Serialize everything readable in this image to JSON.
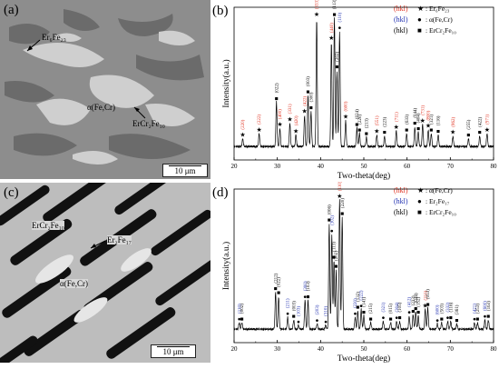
{
  "figure": {
    "panels": [
      {
        "id": "a",
        "label": "(a)",
        "type": "micrograph",
        "annotations": [
          "Er₆Fe₂₃",
          "α(Fe,Cr)",
          "ErCr₂Fe₁₀"
        ],
        "scale_bar": "10 μm"
      },
      {
        "id": "b",
        "label": "(b)",
        "type": "xrd-chart",
        "legend": [
          {
            "hkl": "(hkl)",
            "color": "#e0301e",
            "symbol": "★",
            "phase": "Er₆Fe₂₃"
          },
          {
            "hkl": "(hkl)",
            "color": "#2030b0",
            "symbol": "●",
            "phase": "α(Fe,Cr)"
          },
          {
            "hkl": "(hkl)",
            "color": "#000000",
            "symbol": "■",
            "phase": "ErCr₂Fe₁₀"
          }
        ]
      },
      {
        "id": "c",
        "label": "(c)",
        "type": "micrograph",
        "annotations": [
          "ErCr₂Fe₁₀",
          "Er₂Fe₁₇",
          "α(Fe,Cr)"
        ],
        "scale_bar": "10 μm"
      },
      {
        "id": "d",
        "label": "(d)",
        "type": "xrd-chart",
        "legend": [
          {
            "hkl": "(hkl)",
            "color": "#e0301e",
            "symbol": "★",
            "phase": "α(Fe,Cr)"
          },
          {
            "hkl": "(hkl)",
            "color": "#2030b0",
            "symbol": "●",
            "phase": "Er₂Fe₁₇"
          },
          {
            "hkl": "(hkl)",
            "color": "#000000",
            "symbol": "■",
            "phase": "ErCr₂Fe₁₀"
          }
        ]
      }
    ]
  },
  "chart_data": [
    {
      "type": "line",
      "panel": "b",
      "xlabel": "Two-theta(deg)",
      "ylabel": "Intensity(a.u.)",
      "xlim": [
        20,
        80
      ],
      "xticks": [
        20,
        30,
        40,
        50,
        60,
        70,
        80
      ],
      "peaks": [
        {
          "x": 22.0,
          "h": 0.06,
          "label": "(220)",
          "color": "#e0301e",
          "marker": "★"
        },
        {
          "x": 25.8,
          "h": 0.1,
          "label": "(222)",
          "color": "#e0301e",
          "marker": "★"
        },
        {
          "x": 29.8,
          "h": 0.34,
          "label": "(022)",
          "color": "#000000",
          "marker": "■"
        },
        {
          "x": 30.6,
          "h": 0.14,
          "label": "(400)",
          "color": "#e0301e",
          "marker": "★"
        },
        {
          "x": 32.9,
          "h": 0.18,
          "label": "(331)",
          "color": "#e0301e",
          "marker": "★"
        },
        {
          "x": 34.3,
          "h": 0.09,
          "label": "(420)",
          "color": "#e0301e",
          "marker": "★"
        },
        {
          "x": 36.3,
          "h": 0.24,
          "label": "(422)",
          "color": "#e0301e",
          "marker": "★"
        },
        {
          "x": 37.1,
          "h": 0.39,
          "label": "(003)",
          "color": "#000000",
          "marker": "■"
        },
        {
          "x": 37.8,
          "h": 0.27,
          "label": "(300)",
          "color": "#000000",
          "marker": "■"
        },
        {
          "x": 39.1,
          "h": 0.98,
          "label": "(333)",
          "color": "#e0301e",
          "marker": "★"
        },
        {
          "x": 42.5,
          "h": 0.8,
          "label": "(440)",
          "color": "#e0301e",
          "marker": "★"
        },
        {
          "x": 43.2,
          "h": 1.0,
          "label": "(113)",
          "color": "#000000",
          "marker": "■"
        },
        {
          "x": 43.8,
          "h": 0.58,
          "label": "(202)",
          "color": "#000000",
          "marker": "■"
        },
        {
          "x": 44.4,
          "h": 0.88,
          "label": "(110)",
          "color": "#2030b0",
          "marker": "●"
        },
        {
          "x": 45.8,
          "h": 0.2,
          "label": "(600)",
          "color": "#e0301e",
          "marker": "★"
        },
        {
          "x": 48.4,
          "h": 0.14,
          "label": "(024)",
          "color": "#000000",
          "marker": "■"
        },
        {
          "x": 49.0,
          "h": 0.1,
          "label": "(220)",
          "color": "#000000",
          "marker": "■"
        },
        {
          "x": 50.6,
          "h": 0.07,
          "label": "(213)",
          "color": "#000000",
          "marker": "■"
        },
        {
          "x": 53.0,
          "h": 0.09,
          "label": "(551)",
          "color": "#e0301e",
          "marker": "★"
        },
        {
          "x": 54.8,
          "h": 0.08,
          "label": "(223)",
          "color": "#000000",
          "marker": "■"
        },
        {
          "x": 57.5,
          "h": 0.12,
          "label": "(711)",
          "color": "#e0301e",
          "marker": "★"
        },
        {
          "x": 59.9,
          "h": 0.1,
          "label": "(633)",
          "color": "#000000",
          "marker": "■"
        },
        {
          "x": 61.8,
          "h": 0.15,
          "label": "(044)",
          "color": "#000000",
          "marker": "■"
        },
        {
          "x": 62.6,
          "h": 0.11,
          "label": "(404)",
          "color": "#000000",
          "marker": "■"
        },
        {
          "x": 63.6,
          "h": 0.17,
          "label": "(731)",
          "color": "#e0301e",
          "marker": "★"
        },
        {
          "x": 64.9,
          "h": 0.13,
          "label": "(800)",
          "color": "#e0301e",
          "marker": "★"
        },
        {
          "x": 65.6,
          "h": 0.1,
          "label": "(321)",
          "color": "#000000",
          "marker": "■"
        },
        {
          "x": 67.2,
          "h": 0.09,
          "label": "(116)",
          "color": "#000000",
          "marker": "■"
        },
        {
          "x": 70.6,
          "h": 0.08,
          "label": "(862)",
          "color": "#e0301e",
          "marker": "★"
        },
        {
          "x": 74.2,
          "h": 0.06,
          "label": "(255)",
          "color": "#000000",
          "marker": "■"
        },
        {
          "x": 76.8,
          "h": 0.08,
          "label": "(422)",
          "color": "#000000",
          "marker": "■"
        },
        {
          "x": 78.5,
          "h": 0.1,
          "label": "(971)",
          "color": "#e0301e",
          "marker": "★"
        }
      ]
    },
    {
      "type": "line",
      "panel": "d",
      "xlabel": "Two-theta(deg)",
      "ylabel": "Intensity(a.u.)",
      "xlim": [
        20,
        80
      ],
      "xticks": [
        20,
        30,
        40,
        50,
        60,
        70,
        80
      ],
      "peaks": [
        {
          "x": 21.2,
          "h": 0.05,
          "label": "(110)",
          "color": "#2030b0",
          "marker": "●"
        },
        {
          "x": 21.8,
          "h": 0.05,
          "label": "(002)",
          "color": "#000000",
          "marker": "■"
        },
        {
          "x": 29.6,
          "h": 0.28,
          "label": "(212)",
          "color": "#000000",
          "marker": "■"
        },
        {
          "x": 30.3,
          "h": 0.25,
          "label": "(022)",
          "color": "#000000",
          "marker": "■"
        },
        {
          "x": 32.4,
          "h": 0.09,
          "label": "(211)",
          "color": "#2030b0",
          "marker": "●"
        },
        {
          "x": 33.8,
          "h": 0.07,
          "label": "(003)",
          "color": "#000000",
          "marker": "■"
        },
        {
          "x": 34.9,
          "h": 0.03,
          "label": "(103)",
          "color": "#2030b0",
          "marker": "●"
        },
        {
          "x": 36.4,
          "h": 0.22,
          "label": "(300)",
          "color": "#2030b0",
          "marker": "●"
        },
        {
          "x": 37.1,
          "h": 0.22,
          "label": "(103)",
          "color": "#000000",
          "marker": "■"
        },
        {
          "x": 39.2,
          "h": 0.04,
          "label": "(203)",
          "color": "#2030b0",
          "marker": "●"
        },
        {
          "x": 41.2,
          "h": 0.03,
          "label": "(310)",
          "color": "#2030b0",
          "marker": "●"
        },
        {
          "x": 42.0,
          "h": 0.8,
          "label": "(006)",
          "color": "#000000",
          "marker": "■"
        },
        {
          "x": 42.6,
          "h": 0.72,
          "label": "(302)",
          "color": "#2030b0",
          "marker": "●"
        },
        {
          "x": 43.1,
          "h": 0.52,
          "label": "(113)",
          "color": "#000000",
          "marker": "■"
        },
        {
          "x": 43.6,
          "h": 0.45,
          "label": "(202)",
          "color": "#000000",
          "marker": "■"
        },
        {
          "x": 44.4,
          "h": 1.0,
          "label": "(110)",
          "color": "#e0301e",
          "marker": "★"
        },
        {
          "x": 45.0,
          "h": 0.85,
          "label": "(220)",
          "color": "#000000",
          "marker": "■"
        },
        {
          "x": 48.0,
          "h": 0.09,
          "label": "(220)",
          "color": "#2030b0",
          "marker": "●"
        },
        {
          "x": 48.6,
          "h": 0.14,
          "label": "(132)",
          "color": "#000000",
          "marker": "■"
        },
        {
          "x": 49.4,
          "h": 0.15,
          "label": "(222)",
          "color": "#2030b0",
          "marker": "●"
        },
        {
          "x": 50.0,
          "h": 0.1,
          "label": "(141)",
          "color": "#000000",
          "marker": "■"
        },
        {
          "x": 51.6,
          "h": 0.05,
          "label": "(215)",
          "color": "#000000",
          "marker": "■"
        },
        {
          "x": 54.5,
          "h": 0.06,
          "label": "(321)",
          "color": "#2030b0",
          "marker": "●"
        },
        {
          "x": 56.2,
          "h": 0.05,
          "label": "(015)",
          "color": "#000000",
          "marker": "■"
        },
        {
          "x": 57.6,
          "h": 0.06,
          "label": "(304)",
          "color": "#2030b0",
          "marker": "●"
        },
        {
          "x": 58.3,
          "h": 0.06,
          "label": "(105)",
          "color": "#000000",
          "marker": "■"
        },
        {
          "x": 60.5,
          "h": 0.1,
          "label": "(412)",
          "color": "#2030b0",
          "marker": "●"
        },
        {
          "x": 61.4,
          "h": 0.11,
          "label": "(233)",
          "color": "#000000",
          "marker": "■"
        },
        {
          "x": 62.0,
          "h": 0.13,
          "label": "(044)",
          "color": "#000000",
          "marker": "■"
        },
        {
          "x": 62.6,
          "h": 0.1,
          "label": "(152)",
          "color": "#000000",
          "marker": "■"
        },
        {
          "x": 64.2,
          "h": 0.15,
          "label": "(211)",
          "color": "#e0301e",
          "marker": "★"
        },
        {
          "x": 64.8,
          "h": 0.16,
          "label": "(053)",
          "color": "#000000",
          "marker": "■"
        },
        {
          "x": 67.0,
          "h": 0.04,
          "label": "(600)",
          "color": "#2030b0",
          "marker": "●"
        },
        {
          "x": 68.0,
          "h": 0.05,
          "label": "(503)",
          "color": "#000000",
          "marker": "■"
        },
        {
          "x": 69.4,
          "h": 0.06,
          "label": "(332)",
          "color": "#2030b0",
          "marker": "●"
        },
        {
          "x": 70.1,
          "h": 0.06,
          "label": "(116)",
          "color": "#000000",
          "marker": "■"
        },
        {
          "x": 71.5,
          "h": 0.04,
          "label": "(361)",
          "color": "#000000",
          "marker": "■"
        },
        {
          "x": 75.6,
          "h": 0.05,
          "label": "(421)",
          "color": "#2030b0",
          "marker": "●"
        },
        {
          "x": 76.3,
          "h": 0.05,
          "label": "(253)",
          "color": "#000000",
          "marker": "■"
        },
        {
          "x": 78.0,
          "h": 0.07,
          "label": "(600)",
          "color": "#2030b0",
          "marker": "●"
        },
        {
          "x": 78.8,
          "h": 0.07,
          "label": "(163)",
          "color": "#000000",
          "marker": "■"
        }
      ]
    }
  ]
}
